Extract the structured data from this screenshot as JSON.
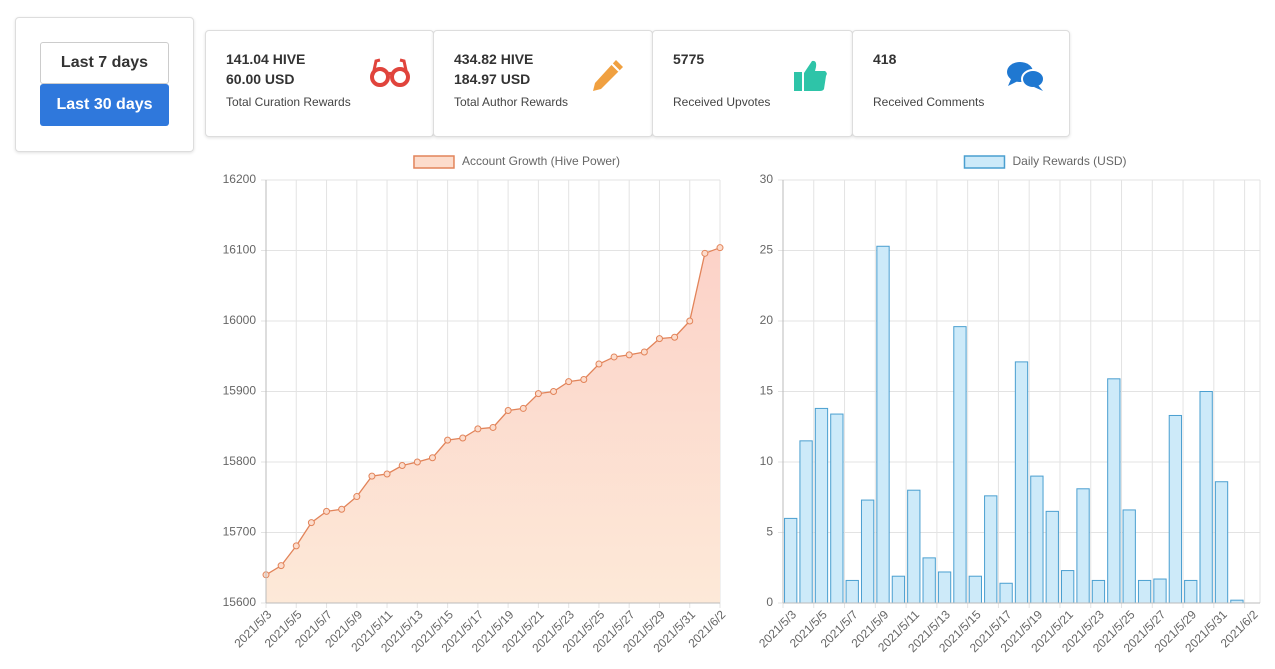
{
  "buttons": [
    "Last 7 days",
    "Last 30 days"
  ],
  "cards": [
    {
      "lines": [
        "141.04 HIVE",
        "60.00 USD"
      ],
      "label": "Total Curation Rewards"
    },
    {
      "lines": [
        "434.82 HIVE",
        "184.97 USD"
      ],
      "label": "Total Author Rewards"
    },
    {
      "lines": [
        "5775"
      ],
      "label": "Received Upvotes"
    },
    {
      "lines": [
        "418"
      ],
      "label": "Received Comments"
    }
  ],
  "chart_data": [
    {
      "type": "line",
      "categories": [
        "2021/5/3",
        null,
        "2021/5/5",
        null,
        "2021/5/7",
        null,
        "2021/5/9",
        null,
        "2021/5/11",
        null,
        "2021/5/13",
        null,
        "2021/5/15",
        null,
        "2021/5/17",
        null,
        "2021/5/19",
        null,
        "2021/5/21",
        null,
        "2021/5/23",
        null,
        "2021/5/25",
        null,
        "2021/5/27",
        null,
        "2021/5/29",
        null,
        "2021/5/31",
        null,
        "2021/6/2"
      ],
      "series": [
        {
          "name": "Account Growth (Hive Power)",
          "color": "#e2845a",
          "fill": "#fcdccc",
          "values": [
            15640,
            15653,
            15681,
            15714,
            15730,
            15733,
            15751,
            15780,
            15783,
            15795,
            15800,
            15806,
            15831,
            15834,
            15847,
            15849,
            15873,
            15876,
            15897,
            15900,
            15914,
            15917,
            15939,
            15949,
            15952,
            15956,
            15975,
            15977,
            16000,
            16096,
            16104
          ]
        }
      ],
      "ylim": [
        15600,
        16200
      ],
      "yticks": [
        15600,
        15700,
        15800,
        15900,
        16000,
        16100,
        16200
      ],
      "grid": true,
      "legend": "top"
    },
    {
      "type": "bar",
      "categories": [
        "2021/5/3",
        null,
        "2021/5/5",
        null,
        "2021/5/7",
        null,
        "2021/5/9",
        null,
        "2021/5/11",
        null,
        "2021/5/13",
        null,
        "2021/5/15",
        null,
        "2021/5/17",
        null,
        "2021/5/19",
        null,
        "2021/5/21",
        null,
        "2021/5/23",
        null,
        "2021/5/25",
        null,
        "2021/5/27",
        null,
        "2021/5/29",
        null,
        "2021/5/31",
        null,
        "2021/6/2"
      ],
      "series": [
        {
          "name": "Daily Rewards (USD)",
          "color": "#4a9fd0",
          "fill": "#cdeaf9",
          "values": [
            6.0,
            11.5,
            13.8,
            13.4,
            1.6,
            7.3,
            25.3,
            1.9,
            8.0,
            3.2,
            2.2,
            19.6,
            1.9,
            7.6,
            1.4,
            17.1,
            9.0,
            6.5,
            2.3,
            8.1,
            1.6,
            15.9,
            6.6,
            1.6,
            1.7,
            13.3,
            1.6,
            15.0,
            8.6,
            0.2,
            0
          ]
        }
      ],
      "ylim": [
        0,
        30
      ],
      "yticks": [
        0,
        5,
        10,
        15,
        20,
        25,
        30
      ],
      "grid": true,
      "legend": "top"
    }
  ]
}
